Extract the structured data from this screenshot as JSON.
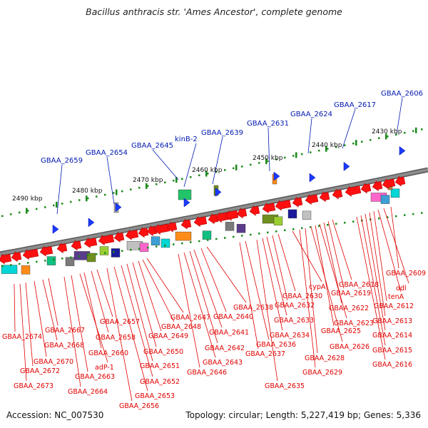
{
  "title": "Bacillus anthracis str. 'Ames Ancestor', complete genome",
  "footer": {
    "accession": "Accession: NC_007530",
    "topology": "Topology: circular; Length: 5,227,419 bp; Genes: 5,336"
  },
  "colors": {
    "backbone": "#8c8c8c",
    "forward_gene": "#ff1010",
    "feature_label": "#e00000",
    "top_label": "#0018b0",
    "tick": "#1a8a1a",
    "arrowhead": "#1a3cff"
  },
  "scale_labels": [
    "2490 kbp",
    "2480 kbp",
    "2470 kbp",
    "2460 kbp",
    "2450 kbp",
    "2440 kbp",
    "2430 kbp"
  ],
  "top_labels": [
    "GBAA_2659",
    "GBAA_2654",
    "GBAA_2645",
    "kinB-2",
    "GBAA_2639",
    "GBAA_2631",
    "GBAA_2624",
    "GBAA_2617",
    "GBAA_2606"
  ],
  "bottom_labels": [
    "GBAA_2674",
    "GBAA_2673",
    "GBAA_2672",
    "GBAA_2670",
    "GBAA_2668",
    "GBAA_2667",
    "GBAA_2664",
    "GBAA_2663",
    "adP-1",
    "GBAA_2660",
    "GBAA_2658",
    "GBAA_2657",
    "GBAA_2656",
    "GBAA_2653",
    "GBAA_2652",
    "GBAA_2651",
    "GBAA_2650",
    "GBAA_2649",
    "GBAA_2648",
    "GBAA_2647",
    "GBAA_2646",
    "GBAA_2643",
    "GBAA_2642",
    "GBAA_2641",
    "GBAA_2640",
    "GBAA_2638",
    "GBAA_2637",
    "GBAA_2636",
    "GBAA_2635",
    "GBAA_2634",
    "GBAA_2633",
    "GBAA_2632",
    "GBAA_2630",
    "cypA",
    "GBAA_2629",
    "GBAA_2628",
    "GBAA_2626",
    "GBAA_2625",
    "GBAA_2623",
    "GBAA_2622",
    "GBAA_2619",
    "GBAA_2618",
    "GBAA_2616",
    "GBAA_2615",
    "GBAA_2614",
    "GBAA_2613",
    "GBAA_2612",
    "tenA",
    "ddl",
    "GBAA_2609"
  ]
}
